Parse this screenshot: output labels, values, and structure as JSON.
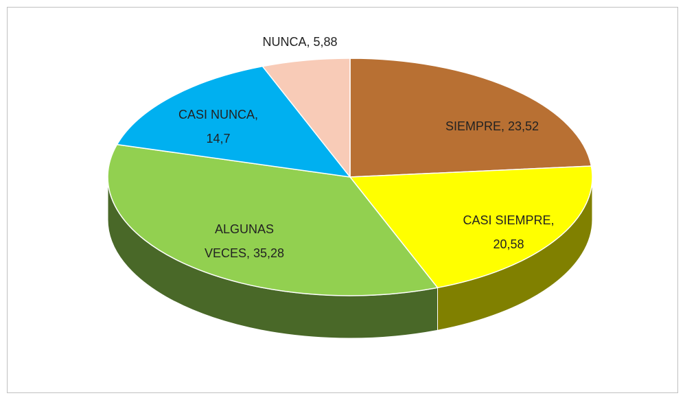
{
  "chart_data": {
    "type": "pie",
    "three_d": true,
    "values": [
      23.52,
      20.58,
      35.28,
      14.7,
      5.88
    ],
    "value_labels": [
      "SIEMPRE, 23,52",
      "CASI SIEMPRE, 20,58",
      "ALGUNAS VECES, 35,28",
      "CASI NUNCA, 14,7",
      "NUNCA, 5,88"
    ],
    "colors": [
      "#b87033",
      "#ffff00",
      "#92d050",
      "#00b0f0",
      "#f8cbb7"
    ]
  }
}
